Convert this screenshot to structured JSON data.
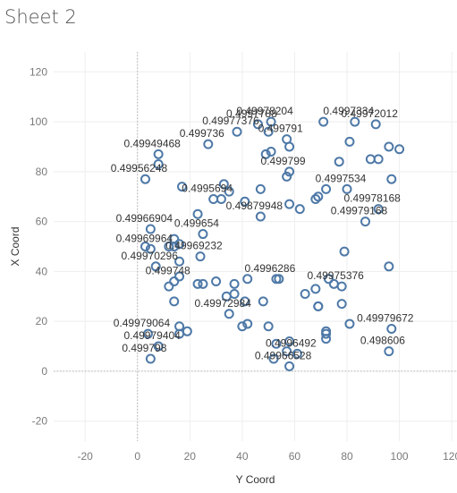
{
  "sheet": {
    "title": "Sheet 2"
  },
  "colors": {
    "marker": "#4e79a7"
  },
  "chart_data": {
    "type": "scatter",
    "title": "",
    "xlabel": "Y Coord",
    "ylabel": "X Coord",
    "xlim": [
      -32,
      122
    ],
    "ylim": [
      -28,
      128
    ],
    "xticks": [
      -20,
      0,
      20,
      40,
      60,
      80,
      100,
      120
    ],
    "yticks": [
      -20,
      0,
      20,
      40,
      60,
      80,
      100,
      120
    ],
    "grid": true,
    "zero_lines": true,
    "marker": "hollow-circle",
    "points": [
      {
        "x": 46,
        "y": 99
      },
      {
        "x": 51,
        "y": 100
      },
      {
        "x": 71,
        "y": 100
      },
      {
        "x": 83,
        "y": 100
      },
      {
        "x": 91,
        "y": 99
      },
      {
        "x": 38,
        "y": 96
      },
      {
        "x": 50,
        "y": 96
      },
      {
        "x": 57,
        "y": 93
      },
      {
        "x": 58,
        "y": 90
      },
      {
        "x": 27,
        "y": 91
      },
      {
        "x": 81,
        "y": 92
      },
      {
        "x": 96,
        "y": 90
      },
      {
        "x": 100,
        "y": 89
      },
      {
        "x": 49,
        "y": 87
      },
      {
        "x": 51,
        "y": 88
      },
      {
        "x": 8,
        "y": 87
      },
      {
        "x": 8,
        "y": 83
      },
      {
        "x": 77,
        "y": 84
      },
      {
        "x": 89,
        "y": 85
      },
      {
        "x": 92,
        "y": 85
      },
      {
        "x": 58,
        "y": 80
      },
      {
        "x": 57,
        "y": 78
      },
      {
        "x": 3,
        "y": 77
      },
      {
        "x": 97,
        "y": 77
      },
      {
        "x": 17,
        "y": 74
      },
      {
        "x": 33,
        "y": 75
      },
      {
        "x": 35,
        "y": 72
      },
      {
        "x": 47,
        "y": 73
      },
      {
        "x": 72,
        "y": 73
      },
      {
        "x": 80,
        "y": 73
      },
      {
        "x": 29,
        "y": 69
      },
      {
        "x": 32,
        "y": 69
      },
      {
        "x": 41,
        "y": 68
      },
      {
        "x": 58,
        "y": 67
      },
      {
        "x": 68,
        "y": 69
      },
      {
        "x": 69,
        "y": 70
      },
      {
        "x": 62,
        "y": 65
      },
      {
        "x": 92,
        "y": 65
      },
      {
        "x": 23,
        "y": 63
      },
      {
        "x": 47,
        "y": 62
      },
      {
        "x": 87,
        "y": 60
      },
      {
        "x": 5,
        "y": 57
      },
      {
        "x": 25,
        "y": 55
      },
      {
        "x": 14,
        "y": 53
      },
      {
        "x": 16,
        "y": 51
      },
      {
        "x": 12,
        "y": 50
      },
      {
        "x": 14,
        "y": 50
      },
      {
        "x": 3,
        "y": 50
      },
      {
        "x": 5,
        "y": 49
      },
      {
        "x": 79,
        "y": 48
      },
      {
        "x": 24,
        "y": 46
      },
      {
        "x": 16,
        "y": 44
      },
      {
        "x": 7,
        "y": 42
      },
      {
        "x": 96,
        "y": 42
      },
      {
        "x": 16,
        "y": 38
      },
      {
        "x": 14,
        "y": 36
      },
      {
        "x": 42,
        "y": 37
      },
      {
        "x": 53,
        "y": 37
      },
      {
        "x": 54,
        "y": 37
      },
      {
        "x": 73,
        "y": 37
      },
      {
        "x": 12,
        "y": 34
      },
      {
        "x": 23,
        "y": 35
      },
      {
        "x": 25,
        "y": 35
      },
      {
        "x": 30,
        "y": 36
      },
      {
        "x": 37,
        "y": 35
      },
      {
        "x": 75,
        "y": 35
      },
      {
        "x": 78,
        "y": 34
      },
      {
        "x": 68,
        "y": 33
      },
      {
        "x": 64,
        "y": 31
      },
      {
        "x": 34,
        "y": 30
      },
      {
        "x": 37,
        "y": 31
      },
      {
        "x": 41,
        "y": 28
      },
      {
        "x": 48,
        "y": 28
      },
      {
        "x": 14,
        "y": 28
      },
      {
        "x": 69,
        "y": 26
      },
      {
        "x": 69,
        "y": 26
      },
      {
        "x": 78,
        "y": 27
      },
      {
        "x": 35,
        "y": 23
      },
      {
        "x": 81,
        "y": 19
      },
      {
        "x": 40,
        "y": 18
      },
      {
        "x": 42,
        "y": 19
      },
      {
        "x": 50,
        "y": 18
      },
      {
        "x": 97,
        "y": 17
      },
      {
        "x": 16,
        "y": 18
      },
      {
        "x": 16,
        "y": 15
      },
      {
        "x": 19,
        "y": 16
      },
      {
        "x": 72,
        "y": 16
      },
      {
        "x": 72,
        "y": 15
      },
      {
        "x": 72,
        "y": 13
      },
      {
        "x": 4,
        "y": 15
      },
      {
        "x": 8,
        "y": 10
      },
      {
        "x": 53,
        "y": 11
      },
      {
        "x": 58,
        "y": 12
      },
      {
        "x": 57,
        "y": 8
      },
      {
        "x": 61,
        "y": 7
      },
      {
        "x": 96,
        "y": 8
      },
      {
        "x": 5,
        "y": 5
      },
      {
        "x": 52,
        "y": 5
      },
      {
        "x": 58,
        "y": 2
      }
    ],
    "annotations": [
      {
        "text": "0.4997788",
        "x": 46,
        "y": 99
      },
      {
        "text": "0.49978204",
        "x": 51,
        "y": 100
      },
      {
        "text": "0.4997334",
        "x": 83,
        "y": 100
      },
      {
        "text": "0.49972012",
        "x": 91,
        "y": 99
      },
      {
        "text": "0.49977376",
        "x": 38,
        "y": 96
      },
      {
        "text": "0.499791",
        "x": 57,
        "y": 93
      },
      {
        "text": "0.49949468",
        "x": 8,
        "y": 87
      },
      {
        "text": "0.499736",
        "x": 27,
        "y": 91
      },
      {
        "text": "0.49956248",
        "x": 3,
        "y": 77
      },
      {
        "text": "0.499799",
        "x": 58,
        "y": 80
      },
      {
        "text": "0.4995694",
        "x": 29,
        "y": 69
      },
      {
        "text": "0.4997534",
        "x": 80,
        "y": 73
      },
      {
        "text": "0.49978168",
        "x": 92,
        "y": 65
      },
      {
        "text": "0.49879948",
        "x": 47,
        "y": 62
      },
      {
        "text": "0.49966904",
        "x": 5,
        "y": 57
      },
      {
        "text": "0.499654",
        "x": 25,
        "y": 55
      },
      {
        "text": "0.49979168",
        "x": 87,
        "y": 60
      },
      {
        "text": "0.49969964",
        "x": 5,
        "y": 49
      },
      {
        "text": "0.49969232",
        "x": 24,
        "y": 46
      },
      {
        "text": "0.49970296",
        "x": 7,
        "y": 42
      },
      {
        "text": "0.4996286",
        "x": 53,
        "y": 37
      },
      {
        "text": "0.499748",
        "x": 14,
        "y": 36
      },
      {
        "text": "0.49975376",
        "x": 78,
        "y": 34
      },
      {
        "text": "0.49972984",
        "x": 35,
        "y": 23
      },
      {
        "text": "0.49979672",
        "x": 97,
        "y": 17
      },
      {
        "text": "0.49979064",
        "x": 4,
        "y": 15
      },
      {
        "text": "0.49979404",
        "x": 8,
        "y": 10
      },
      {
        "text": "0.4996492",
        "x": 61,
        "y": 7
      },
      {
        "text": "0.499798",
        "x": 5,
        "y": 5
      },
      {
        "text": "0.49966528",
        "x": 58,
        "y": 2
      },
      {
        "text": "0.498606",
        "x": 96,
        "y": 8
      }
    ]
  }
}
